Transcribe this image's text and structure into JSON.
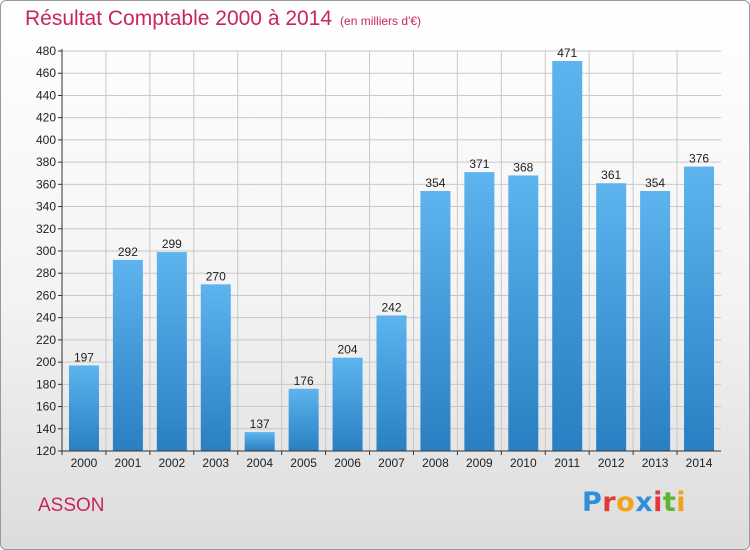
{
  "header": {
    "title": "Résultat Comptable 2000 à 2014",
    "unit": "(en milliers d'€)"
  },
  "commune": "ASSON",
  "logo": {
    "text": "Proxiti"
  },
  "colors": {
    "title": "#c8265a",
    "bar_top": "#5db4ee",
    "bar_bottom": "#2a7fc2",
    "grid": "#c8c8c8",
    "axis": "#333333"
  },
  "chart_data": {
    "type": "bar",
    "title": "Résultat Comptable 2000 à 2014",
    "subtitle": "(en milliers d'€)",
    "xlabel": "",
    "ylabel": "",
    "categories": [
      "2000",
      "2001",
      "2002",
      "2003",
      "2004",
      "2005",
      "2006",
      "2007",
      "2008",
      "2009",
      "2010",
      "2011",
      "2012",
      "2013",
      "2014"
    ],
    "values": [
      197,
      292,
      299,
      270,
      137,
      176,
      204,
      242,
      354,
      371,
      368,
      471,
      361,
      354,
      376
    ],
    "ylim": [
      120,
      480
    ],
    "yticks": [
      120,
      140,
      160,
      180,
      200,
      220,
      240,
      260,
      280,
      300,
      320,
      340,
      360,
      380,
      400,
      420,
      440,
      460,
      480
    ],
    "grid": true,
    "data_labels": true
  }
}
